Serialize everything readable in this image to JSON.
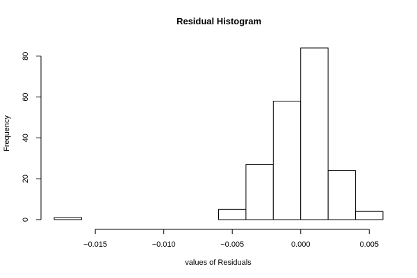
{
  "chart_data": {
    "type": "bar",
    "title": "Residual Histogram",
    "xlabel": "values of Residuals",
    "ylabel": "Frequency",
    "bins": [
      {
        "x0": -0.018,
        "x1": -0.016,
        "count": 1
      },
      {
        "x0": -0.016,
        "x1": -0.014,
        "count": 0
      },
      {
        "x0": -0.014,
        "x1": -0.012,
        "count": 0
      },
      {
        "x0": -0.012,
        "x1": -0.01,
        "count": 0
      },
      {
        "x0": -0.01,
        "x1": -0.008,
        "count": 0
      },
      {
        "x0": -0.008,
        "x1": -0.006,
        "count": 0
      },
      {
        "x0": -0.006,
        "x1": -0.004,
        "count": 5
      },
      {
        "x0": -0.004,
        "x1": -0.002,
        "count": 27
      },
      {
        "x0": -0.002,
        "x1": 0.0,
        "count": 58
      },
      {
        "x0": 0.0,
        "x1": 0.002,
        "count": 84
      },
      {
        "x0": 0.002,
        "x1": 0.004,
        "count": 24
      },
      {
        "x0": 0.004,
        "x1": 0.006,
        "count": 4
      }
    ],
    "xlim": [
      -0.018,
      0.006
    ],
    "ylim": [
      0,
      84
    ],
    "xticks": [
      -0.015,
      -0.01,
      -0.005,
      0.0,
      0.005
    ],
    "xtick_labels": [
      "−0.015",
      "−0.010",
      "−0.005",
      "0.000",
      "0.005"
    ],
    "yticks": [
      0,
      20,
      40,
      60,
      80
    ],
    "ytick_labels": [
      "0",
      "20",
      "40",
      "60",
      "80"
    ],
    "grid": false
  }
}
